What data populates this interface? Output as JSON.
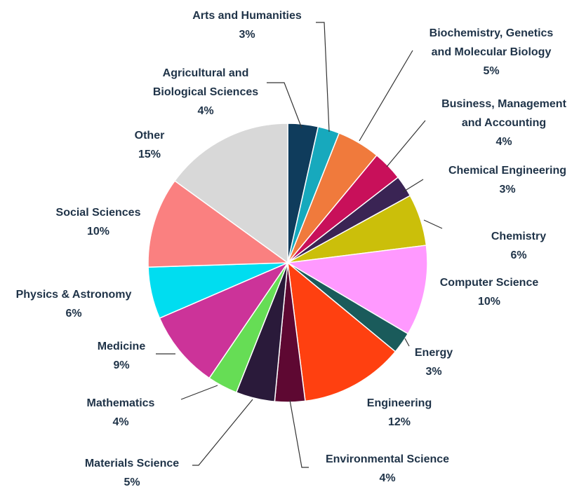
{
  "chart_data": {
    "type": "pie",
    "title": "",
    "start_angle_deg": 0,
    "direction": "clockwise",
    "slices": [
      {
        "label": "Agricultural and Biological Sciences",
        "lines": [
          "Agricultural and",
          "Biological Sciences"
        ],
        "pct_text": "4%",
        "value": 3.5,
        "color": "#0f3c5c"
      },
      {
        "label": "Arts and Humanities",
        "lines": [
          "Arts and Humanities"
        ],
        "pct_text": "3%",
        "value": 2.5,
        "color": "#17a9bd"
      },
      {
        "label": "Biochemistry, Genetics and Molecular Biology",
        "lines": [
          "Biochemistry, Genetics",
          "and Molecular Biology"
        ],
        "pct_text": "5%",
        "value": 5.0,
        "color": "#f07a3c"
      },
      {
        "label": "Business, Management and Accounting",
        "lines": [
          "Business, Management",
          "and Accounting"
        ],
        "pct_text": "4%",
        "value": 3.5,
        "color": "#c8105a"
      },
      {
        "label": "Chemical Engineering",
        "lines": [
          "Chemical Engineering"
        ],
        "pct_text": "3%",
        "value": 2.5,
        "color": "#3a2454"
      },
      {
        "label": "Chemistry",
        "lines": [
          "Chemistry"
        ],
        "pct_text": "6%",
        "value": 6.0,
        "color": "#cbbf0a"
      },
      {
        "label": "Computer Science",
        "lines": [
          "Computer Science"
        ],
        "pct_text": "10%",
        "value": 10.5,
        "color": "#ff99ff"
      },
      {
        "label": "Energy",
        "lines": [
          "Energy"
        ],
        "pct_text": "3%",
        "value": 2.5,
        "color": "#1a5b5b"
      },
      {
        "label": "Engineering",
        "lines": [
          "Engineering"
        ],
        "pct_text": "12%",
        "value": 12.0,
        "color": "#ff4010"
      },
      {
        "label": "Environmental Science",
        "lines": [
          "Environmental Science"
        ],
        "pct_text": "4%",
        "value": 3.5,
        "color": "#5e0832"
      },
      {
        "label": "Materials Science",
        "lines": [
          "Materials Science"
        ],
        "pct_text": "5%",
        "value": 4.5,
        "color": "#2a1a3a"
      },
      {
        "label": "Mathematics",
        "lines": [
          "Mathematics"
        ],
        "pct_text": "4%",
        "value": 3.5,
        "color": "#66dd55"
      },
      {
        "label": "Medicine",
        "lines": [
          "Medicine"
        ],
        "pct_text": "9%",
        "value": 9.0,
        "color": "#cc3399"
      },
      {
        "label": "Physics & Astronomy",
        "lines": [
          "Physics & Astronomy"
        ],
        "pct_text": "6%",
        "value": 6.0,
        "color": "#00ddf0"
      },
      {
        "label": "Social Sciences",
        "lines": [
          "Social Sciences"
        ],
        "pct_text": "10%",
        "value": 10.5,
        "color": "#fa8080"
      },
      {
        "label": "Other",
        "lines": [
          "Other"
        ],
        "pct_text": "15%",
        "value": 15.0,
        "color": "#d8d8d8"
      }
    ]
  }
}
